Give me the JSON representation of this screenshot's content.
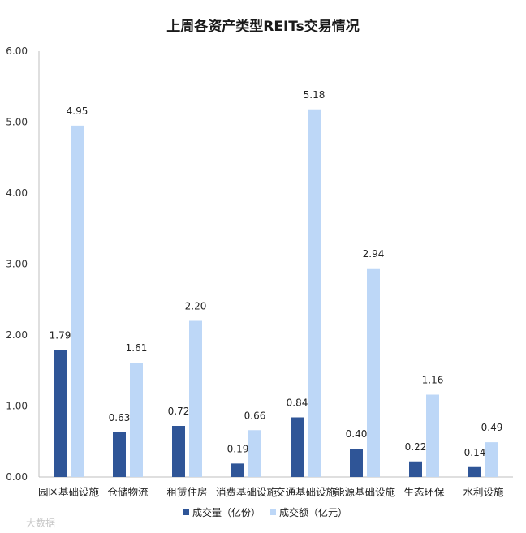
{
  "chart_data": {
    "type": "bar",
    "title": "上周各资产类型REITs交易情况",
    "categories": [
      "园区基础设施",
      "仓储物流",
      "租赁住房",
      "消费基础设施",
      "交通基础设施",
      "能源基础设施",
      "生态环保",
      "水利设施"
    ],
    "series": [
      {
        "name": "成交量（亿份）",
        "color": "#2f5597",
        "values": [
          1.79,
          0.63,
          0.72,
          0.19,
          0.84,
          0.4,
          0.22,
          0.14
        ]
      },
      {
        "name": "成交额（亿元）",
        "color": "#bdd7f7",
        "values": [
          4.95,
          1.61,
          2.2,
          0.66,
          5.18,
          2.94,
          1.16,
          0.49
        ]
      }
    ],
    "yticks": [
      "0.00",
      "1.00",
      "2.00",
      "3.00",
      "4.00",
      "5.00",
      "6.00"
    ],
    "ylim": [
      0,
      6
    ],
    "xlabel": "",
    "ylabel": "",
    "legend_position": "bottom",
    "grid": false
  },
  "watermark": "大数据"
}
